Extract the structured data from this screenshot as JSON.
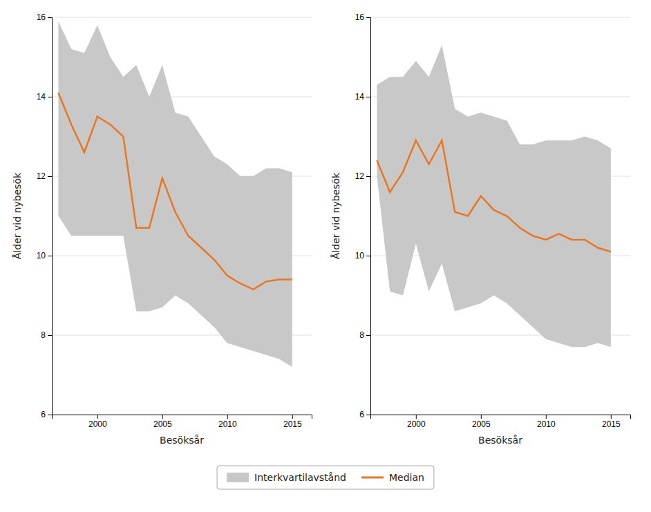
{
  "chart_data": [
    {
      "type": "line",
      "xlabel": "Besöksår",
      "ylabel": "Ålder vid nybesök",
      "x": [
        1997,
        1998,
        1999,
        2000,
        2001,
        2002,
        2003,
        2004,
        2005,
        2006,
        2007,
        2008,
        2009,
        2010,
        2011,
        2012,
        2013,
        2014,
        2015
      ],
      "series": [
        {
          "name": "Interkvartilavstånd",
          "type": "area",
          "color": "#C8C8C8",
          "low": [
            11.0,
            10.5,
            10.5,
            10.5,
            10.5,
            10.5,
            8.6,
            8.6,
            8.7,
            9.0,
            8.8,
            8.5,
            8.2,
            7.8,
            7.7,
            7.6,
            7.5,
            7.4,
            7.2
          ],
          "high": [
            15.9,
            15.2,
            15.1,
            15.8,
            15.0,
            14.5,
            14.8,
            14.0,
            14.8,
            13.6,
            13.5,
            13.0,
            12.5,
            12.3,
            12.0,
            12.0,
            12.2,
            12.2,
            12.1
          ]
        },
        {
          "name": "Median",
          "type": "line",
          "color": "#E87722",
          "values": [
            14.1,
            13.3,
            12.6,
            13.5,
            13.3,
            13.0,
            10.7,
            10.7,
            11.95,
            11.1,
            10.5,
            10.2,
            9.9,
            9.5,
            9.3,
            9.15,
            9.35,
            9.4,
            9.4
          ]
        }
      ],
      "xlim": [
        1996.5,
        2016.5
      ],
      "xticks": [
        2000,
        2005,
        2010,
        2015
      ],
      "ylim": [
        6,
        16
      ],
      "yticks": [
        6,
        8,
        10,
        12,
        14,
        16
      ],
      "grid": true,
      "legend": "bottom"
    },
    {
      "type": "line",
      "xlabel": "Besöksår",
      "ylabel": "Ålder vid nybesök",
      "x": [
        1997,
        1998,
        1999,
        2000,
        2001,
        2002,
        2003,
        2004,
        2005,
        2006,
        2007,
        2008,
        2009,
        2010,
        2011,
        2012,
        2013,
        2014,
        2015
      ],
      "series": [
        {
          "name": "Interkvartilavstånd",
          "type": "area",
          "color": "#C8C8C8",
          "low": [
            12.0,
            9.1,
            9.0,
            10.3,
            9.1,
            9.8,
            8.6,
            8.7,
            8.8,
            9.0,
            8.8,
            8.5,
            8.2,
            7.9,
            7.8,
            7.7,
            7.7,
            7.8,
            7.7
          ],
          "high": [
            14.3,
            14.5,
            14.5,
            14.9,
            14.5,
            15.3,
            13.7,
            13.5,
            13.6,
            13.5,
            13.4,
            12.8,
            12.8,
            12.9,
            12.9,
            12.9,
            13.0,
            12.9,
            12.7
          ]
        },
        {
          "name": "Median",
          "type": "line",
          "color": "#E87722",
          "values": [
            12.4,
            11.6,
            12.1,
            12.9,
            12.3,
            12.9,
            11.1,
            11.0,
            11.5,
            11.15,
            11.0,
            10.7,
            10.5,
            10.4,
            10.55,
            10.4,
            10.4,
            10.2,
            10.1
          ]
        }
      ],
      "xlim": [
        1996.5,
        2016.5
      ],
      "xticks": [
        2000,
        2005,
        2010,
        2015
      ],
      "ylim": [
        6,
        16
      ],
      "yticks": [
        6,
        8,
        10,
        12,
        14,
        16
      ],
      "grid": true
    }
  ]
}
